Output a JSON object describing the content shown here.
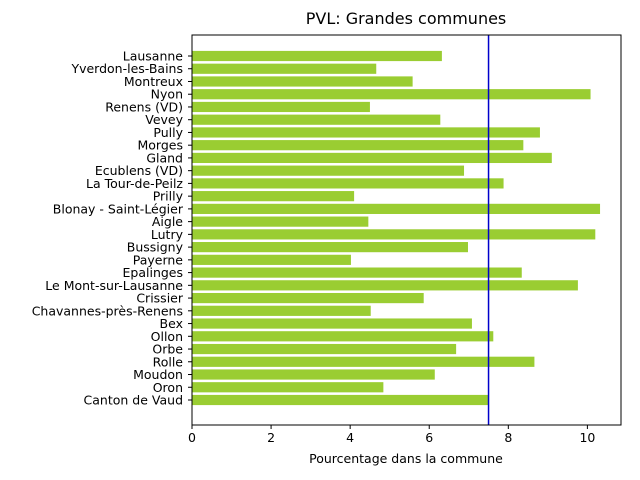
{
  "chart_data": {
    "type": "bar",
    "orientation": "horizontal",
    "title": "PVL: Grandes communes",
    "xlabel": "Pourcentage dans la commune",
    "ylabel": "",
    "xlim": [
      0,
      10.85
    ],
    "xticks": [
      0,
      2,
      4,
      6,
      8,
      10
    ],
    "grid": false,
    "bar_color": "#9acd32",
    "reference_line": {
      "value": 7.5,
      "color": "#0000cc"
    },
    "categories": [
      "Lausanne",
      "Yverdon-les-Bains",
      "Montreux",
      "Nyon",
      "Renens (VD)",
      "Vevey",
      "Pully",
      "Morges",
      "Gland",
      "Ecublens (VD)",
      "La Tour-de-Peilz",
      "Prilly",
      "Blonay - Saint-Légier",
      "Aigle",
      "Lutry",
      "Bussigny",
      "Payerne",
      "Epalinges",
      "Le Mont-sur-Lausanne",
      "Crissier",
      "Chavannes-près-Renens",
      "Bex",
      "Ollon",
      "Orbe",
      "Rolle",
      "Moudon",
      "Oron",
      "Canton de Vaud"
    ],
    "values": [
      6.32,
      4.66,
      5.58,
      10.08,
      4.5,
      6.28,
      8.8,
      8.38,
      9.1,
      6.88,
      7.88,
      4.1,
      10.32,
      4.46,
      10.2,
      6.98,
      4.02,
      8.34,
      9.76,
      5.86,
      4.52,
      7.08,
      7.62,
      6.68,
      8.66,
      6.14,
      4.84,
      7.5
    ]
  }
}
